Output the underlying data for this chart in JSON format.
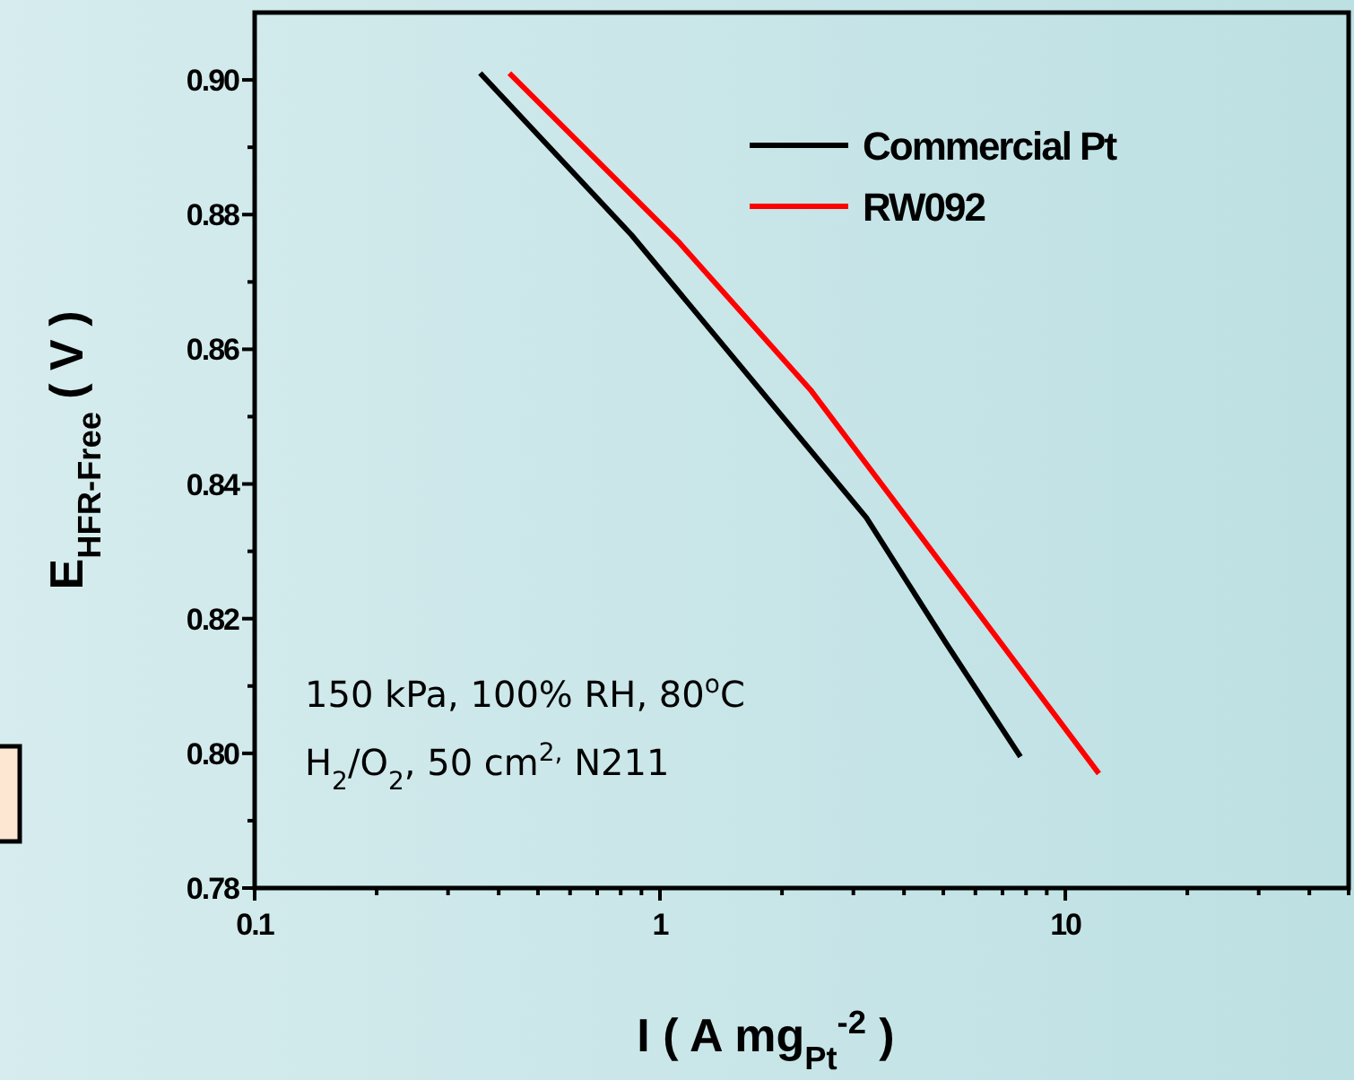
{
  "chart_data": {
    "type": "line",
    "xlabel": "I ( A mg$_{Pt}$$^{-2}$ )",
    "ylabel": "E$_{HFR-Free}$ ( V )",
    "log": "x",
    "xlim": [
      0.1,
      50
    ],
    "ylim": [
      0.78,
      0.91
    ],
    "xticks": [
      0.1,
      {
        "value": 0.2,
        "label": null
      },
      {
        "value": 0.3,
        "label": null
      },
      {
        "value": 0.4,
        "label": null
      },
      {
        "value": 0.5,
        "label": null
      },
      {
        "value": 0.6,
        "label": null
      },
      {
        "value": 0.7,
        "label": null
      },
      {
        "value": 0.8,
        "label": null
      },
      {
        "value": 0.9,
        "label": null
      },
      1,
      {
        "value": 2,
        "label": null
      },
      {
        "value": 3,
        "label": null
      },
      {
        "value": 4,
        "label": null
      },
      {
        "value": 5,
        "label": null
      },
      {
        "value": 6,
        "label": null
      },
      {
        "value": 7,
        "label": null
      },
      {
        "value": 8,
        "label": null
      },
      {
        "value": 9,
        "label": null
      },
      10,
      {
        "value": 20,
        "label": null
      },
      {
        "value": 30,
        "label": null
      },
      {
        "value": 40,
        "label": null
      },
      {
        "value": 50,
        "label": null
      }
    ],
    "yticks": [
      {
        "value": 0.78,
        "label": "0.78"
      },
      {
        "value": 0.79,
        "label": null
      },
      {
        "value": 0.8,
        "label": "0.80"
      },
      {
        "value": 0.81,
        "label": null
      },
      {
        "value": 0.82,
        "label": "0.82"
      },
      {
        "value": 0.83,
        "label": null
      },
      {
        "value": 0.84,
        "label": "0.84"
      },
      {
        "value": 0.85,
        "label": null
      },
      {
        "value": 0.86,
        "label": "0.86"
      },
      {
        "value": 0.87,
        "label": null
      },
      {
        "value": 0.88,
        "label": "0.88"
      },
      {
        "value": 0.89,
        "label": null
      },
      {
        "value": 0.9,
        "label": "0.90"
      }
    ],
    "series": [
      {
        "name": "Commercial Pt",
        "color": "#000000",
        "x": [
          0.36,
          0.85,
          3.23,
          5.06,
          7.75
        ],
        "values": [
          0.901,
          0.877,
          0.835,
          0.8165,
          0.7995
        ]
      },
      {
        "name": "RW092",
        "color": "#ff0000",
        "x": [
          0.425,
          1.11,
          2.35,
          4.43,
          12.1
        ],
        "values": [
          0.901,
          0.876,
          0.854,
          0.832,
          0.797
        ]
      }
    ],
    "annotations": [
      "150 kPa, 100% RH, 80$^{o}$C",
      "H$_{2}$/O$_{2}$, 50 cm$^{2,}$ N211"
    ],
    "legend": "top right",
    "marker": "none",
    "line_style": "solid",
    "grid": false
  }
}
